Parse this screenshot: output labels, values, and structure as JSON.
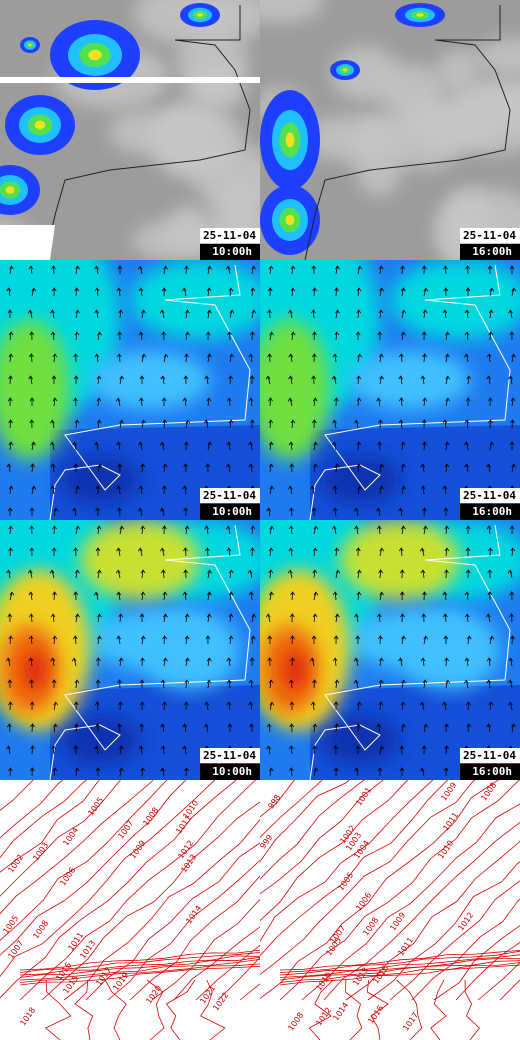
{
  "rows": [
    {
      "panels": [
        {
          "date": "25-11-04",
          "time": "10:00h"
        },
        {
          "date": "25-11-04",
          "time": "16:00h"
        }
      ]
    },
    {
      "panels": [
        {
          "date": "25-11-04",
          "time": "10:00h"
        },
        {
          "date": "25-11-04",
          "time": "16:00h"
        }
      ]
    },
    {
      "panels": [
        {
          "date": "25-11-04",
          "time": "10:00h"
        },
        {
          "date": "25-11-04",
          "time": "16:00h"
        }
      ]
    }
  ],
  "isobars": {
    "left": [
      1002,
      1003,
      1004,
      1005,
      1007,
      1008,
      1009,
      1010,
      1011,
      1012,
      1013,
      1006,
      1014,
      1005,
      1008,
      1007,
      1011,
      1013,
      1016,
      1015,
      1017,
      1019,
      1020,
      1021,
      1022,
      1018
    ],
    "right": [
      998,
      999,
      1001,
      1002,
      1003,
      1004,
      1005,
      1006,
      1007,
      1008,
      1009,
      1010,
      1011,
      1012,
      1009,
      1008,
      1011,
      1005,
      1010,
      1013,
      1016,
      1014,
      1016,
      1017,
      1012,
      1008
    ]
  }
}
